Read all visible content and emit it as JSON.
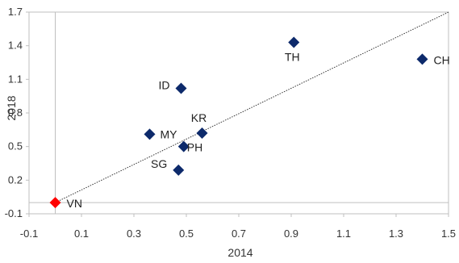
{
  "chart_data": {
    "type": "scatter",
    "title": "",
    "xlabel": "2014",
    "ylabel": "2018",
    "xlim": [
      -0.1,
      1.5
    ],
    "ylim": [
      -0.1,
      1.7
    ],
    "x_ticks": [
      "-0.1",
      "0.1",
      "0.3",
      "0.5",
      "0.7",
      "0.9",
      "1.1",
      "1.3",
      "1.5"
    ],
    "y_ticks": [
      "-0.1",
      "0.2",
      "0.5",
      "0.8",
      "1.1",
      "1.4",
      "1.7"
    ],
    "grid": false,
    "reference_line": {
      "style": "dotted",
      "from": [
        0,
        0
      ],
      "to": [
        1.5,
        1.7
      ]
    },
    "points": [
      {
        "label": "VN",
        "x": 0.0,
        "y": 0.0,
        "color": "#ff0000"
      },
      {
        "label": "SG",
        "x": 0.47,
        "y": 0.29,
        "color": "#0d2a6b"
      },
      {
        "label": "PH",
        "x": 0.49,
        "y": 0.5,
        "color": "#0d2a6b"
      },
      {
        "label": "KR",
        "x": 0.56,
        "y": 0.62,
        "color": "#0d2a6b"
      },
      {
        "label": "MY",
        "x": 0.36,
        "y": 0.61,
        "color": "#0d2a6b"
      },
      {
        "label": "ID",
        "x": 0.48,
        "y": 1.02,
        "color": "#0d2a6b"
      },
      {
        "label": "TH",
        "x": 0.91,
        "y": 1.43,
        "color": "#0d2a6b"
      },
      {
        "label": "CH",
        "x": 1.4,
        "y": 1.28,
        "color": "#0d2a6b"
      }
    ]
  }
}
